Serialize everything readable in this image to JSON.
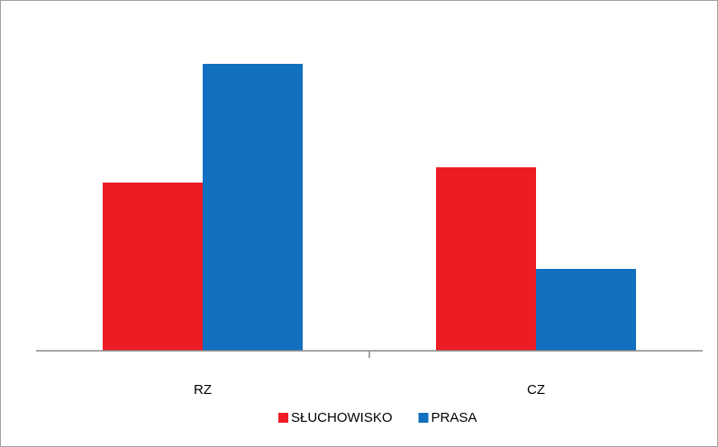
{
  "chart_data": {
    "type": "bar",
    "categories": [
      "RZ",
      "CZ"
    ],
    "series": [
      {
        "name": "SŁUCHOWISKO",
        "color": "#ed1c24",
        "values": [
          187,
          204
        ]
      },
      {
        "name": "PRASA",
        "color": "#1170c0",
        "values": [
          319,
          91
        ]
      }
    ],
    "ylim": [
      0,
      350
    ],
    "legend": "bottom"
  }
}
